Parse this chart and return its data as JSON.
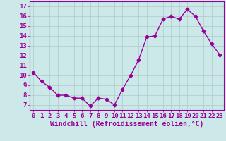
{
  "x": [
    0,
    1,
    2,
    3,
    4,
    5,
    6,
    7,
    8,
    9,
    10,
    11,
    12,
    13,
    14,
    15,
    16,
    17,
    18,
    19,
    20,
    21,
    22,
    23
  ],
  "y": [
    10.3,
    9.4,
    8.8,
    8.0,
    8.0,
    7.7,
    7.7,
    6.9,
    7.7,
    7.6,
    7.0,
    8.6,
    10.0,
    11.6,
    13.9,
    14.0,
    15.7,
    16.0,
    15.7,
    16.7,
    16.0,
    14.5,
    13.2,
    12.1
  ],
  "line_color": "#990099",
  "marker": "D",
  "marker_size": 2.5,
  "bg_color": "#cce8e8",
  "grid_color": "#aacccc",
  "xlabel": "Windchill (Refroidissement éolien,°C)",
  "ylabel_ticks": [
    7,
    8,
    9,
    10,
    11,
    12,
    13,
    14,
    15,
    16,
    17
  ],
  "ylim": [
    6.5,
    17.5
  ],
  "xlim": [
    -0.5,
    23.5
  ],
  "label_color": "#990099",
  "tick_color": "#990099",
  "font_size": 6.5,
  "xlabel_font_size": 7.0,
  "linewidth": 1.0
}
